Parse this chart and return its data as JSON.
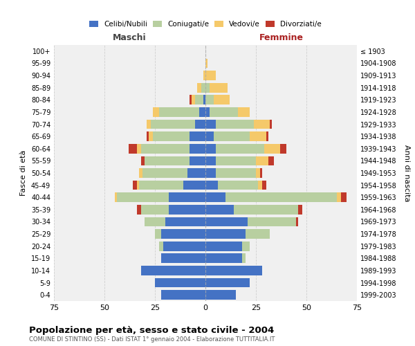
{
  "age_groups": [
    "0-4",
    "5-9",
    "10-14",
    "15-19",
    "20-24",
    "25-29",
    "30-34",
    "35-39",
    "40-44",
    "45-49",
    "50-54",
    "55-59",
    "60-64",
    "65-69",
    "70-74",
    "75-79",
    "80-84",
    "85-89",
    "90-94",
    "95-99",
    "100+"
  ],
  "birth_years": [
    "1999-2003",
    "1994-1998",
    "1989-1993",
    "1984-1988",
    "1979-1983",
    "1974-1978",
    "1969-1973",
    "1964-1968",
    "1959-1963",
    "1954-1958",
    "1949-1953",
    "1944-1948",
    "1939-1943",
    "1934-1938",
    "1929-1933",
    "1924-1928",
    "1919-1923",
    "1914-1918",
    "1909-1913",
    "1904-1908",
    "≤ 1903"
  ],
  "maschi": {
    "celibi": [
      22,
      25,
      32,
      22,
      21,
      22,
      20,
      18,
      18,
      11,
      9,
      8,
      8,
      8,
      5,
      3,
      1,
      0,
      0,
      0,
      0
    ],
    "coniugati": [
      0,
      0,
      0,
      0,
      2,
      3,
      10,
      14,
      26,
      22,
      22,
      22,
      24,
      18,
      22,
      20,
      4,
      2,
      0,
      0,
      0
    ],
    "vedovi": [
      0,
      0,
      0,
      0,
      0,
      0,
      0,
      0,
      1,
      1,
      2,
      0,
      2,
      2,
      2,
      3,
      2,
      2,
      1,
      0,
      0
    ],
    "divorziati": [
      0,
      0,
      0,
      0,
      0,
      0,
      0,
      2,
      0,
      2,
      0,
      2,
      4,
      1,
      0,
      0,
      1,
      0,
      0,
      0,
      0
    ]
  },
  "femmine": {
    "nubili": [
      15,
      22,
      28,
      18,
      18,
      20,
      21,
      14,
      10,
      6,
      5,
      5,
      5,
      4,
      5,
      2,
      0,
      0,
      0,
      0,
      0
    ],
    "coniugate": [
      0,
      0,
      0,
      2,
      4,
      12,
      24,
      32,
      55,
      20,
      20,
      20,
      24,
      18,
      19,
      14,
      4,
      2,
      0,
      0,
      0
    ],
    "vedove": [
      0,
      0,
      0,
      0,
      0,
      0,
      0,
      0,
      2,
      2,
      2,
      6,
      8,
      8,
      8,
      6,
      8,
      9,
      5,
      1,
      0
    ],
    "divorziate": [
      0,
      0,
      0,
      0,
      0,
      0,
      1,
      2,
      3,
      2,
      1,
      3,
      3,
      1,
      1,
      0,
      0,
      0,
      0,
      0,
      0
    ]
  },
  "color_celibe": "#4472c4",
  "color_coniugato": "#b8cfa0",
  "color_vedovo": "#f5c96a",
  "color_divorziato": "#c0392b",
  "xlim": 75,
  "title": "Popolazione per età, sesso e stato civile - 2004",
  "subtitle": "COMUNE DI STINTINO (SS) - Dati ISTAT 1° gennaio 2004 - Elaborazione TUTTITALIA.IT",
  "ylabel_left": "Fasce di età",
  "ylabel_right": "Anni di nascita",
  "xlabel_left": "Maschi",
  "xlabel_right": "Femmine",
  "bg_color": "#f0f0f0",
  "grid_color": "#cccccc",
  "label_color_maschi": "#444444",
  "label_color_femmine": "#aa2222"
}
